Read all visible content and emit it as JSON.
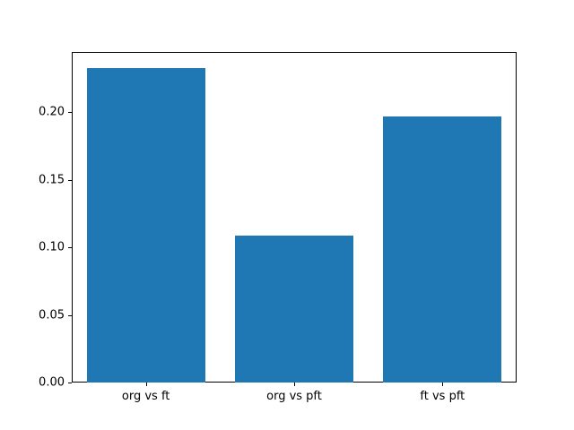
{
  "chart_data": {
    "type": "bar",
    "categories": [
      "org vs ft",
      "org vs pft",
      "ft vs pft"
    ],
    "values": [
      0.233,
      0.109,
      0.197
    ],
    "title": "",
    "xlabel": "",
    "ylabel": "",
    "ylim": [
      0,
      0.245
    ],
    "yticks": [
      0.0,
      0.05,
      0.1,
      0.15,
      0.2
    ],
    "ytick_labels": [
      "0.00",
      "0.05",
      "0.10",
      "0.15",
      "0.20"
    ],
    "bar_color": "#1f77b4",
    "bar_relative_width": 0.8,
    "axes_edge_color": "#000000",
    "text_color": "#000000",
    "background_color": "#ffffff",
    "grid": false,
    "legend": null
  }
}
